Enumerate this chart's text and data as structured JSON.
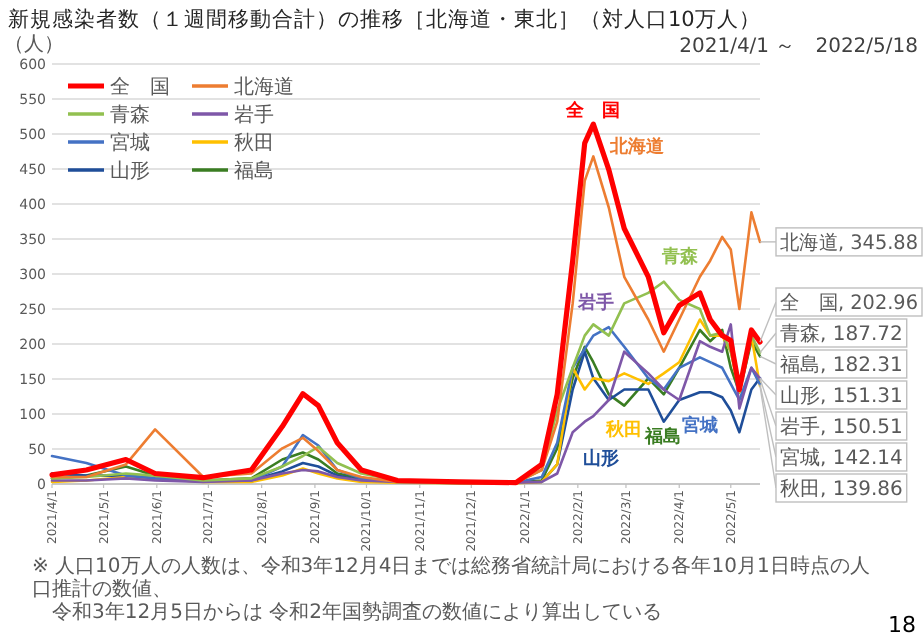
{
  "chart_data": {
    "type": "line",
    "title": "新規感染者数（１週間移動合計）の推移［北海道・東北］（対人口10万人）",
    "subtitle": "2021/4/1 ～　2022/5/18",
    "ylabel": "（人）",
    "x": [
      "2021-04-01",
      "2021-04-21",
      "2021-05-14",
      "2021-05-31",
      "2021-06-28",
      "2021-07-26",
      "2021-08-13",
      "2021-08-25",
      "2021-09-03",
      "2021-09-14",
      "2021-09-28",
      "2021-10-19",
      "2021-11-24",
      "2021-12-27",
      "2022-01-11",
      "2022-01-20",
      "2022-01-29",
      "2022-02-05",
      "2022-02-10",
      "2022-02-19",
      "2022-02-28",
      "2022-03-14",
      "2022-03-23",
      "2022-04-01",
      "2022-04-13",
      "2022-04-19",
      "2022-04-26",
      "2022-05-01",
      "2022-05-06",
      "2022-05-13",
      "2022-05-18"
    ],
    "xlim": [
      "2021-04-01",
      "2022-05-18"
    ],
    "ylim": [
      0,
      600
    ],
    "yticks": [
      0,
      50,
      100,
      150,
      200,
      250,
      300,
      350,
      400,
      450,
      500,
      550,
      600
    ],
    "xticks": [
      {
        "value": "2021-04-01",
        "label": "2021/4/1"
      },
      {
        "value": "2021-05-01",
        "label": "2021/5/1"
      },
      {
        "value": "2021-06-01",
        "label": "2021/6/1"
      },
      {
        "value": "2021-07-01",
        "label": "2021/7/1"
      },
      {
        "value": "2021-08-01",
        "label": "2021/8/1"
      },
      {
        "value": "2021-09-01",
        "label": "2021/9/1"
      },
      {
        "value": "2021-10-01",
        "label": "2021/10/1"
      },
      {
        "value": "2021-11-01",
        "label": "2021/11/1"
      },
      {
        "value": "2021-12-01",
        "label": "2021/12/1"
      },
      {
        "value": "2022-01-01",
        "label": "2022/1/1"
      },
      {
        "value": "2022-02-01",
        "label": "2022/2/1"
      },
      {
        "value": "2022-03-01",
        "label": "2022/3/1"
      },
      {
        "value": "2022-04-01",
        "label": "2022/4/1"
      },
      {
        "value": "2022-05-01",
        "label": "2022/5/1"
      }
    ],
    "grid": "y",
    "legend": "top left",
    "series": [
      {
        "name": "全　国",
        "color": "#ff0000",
        "values": [
          13,
          20,
          35,
          15,
          9,
          20,
          82,
          129,
          112,
          59,
          20,
          5,
          3,
          2,
          28,
          128,
          319,
          487,
          514,
          449,
          365,
          296,
          216,
          255,
          273,
          235,
          212,
          205,
          135,
          220,
          202.96
        ]
      },
      {
        "name": "北海道",
        "color": "#ed7d31",
        "values": [
          10,
          10,
          28,
          78,
          10,
          15,
          51,
          66,
          47,
          20,
          10,
          3,
          2,
          2,
          20,
          89,
          258,
          433,
          468,
          395,
          296,
          235,
          189,
          235,
          296,
          319,
          353,
          335,
          250,
          388,
          345.88
        ]
      },
      {
        "name": "青森",
        "color": "#92c050",
        "values": [
          8,
          10,
          15,
          12,
          5,
          8,
          25,
          40,
          53,
          30,
          15,
          5,
          3,
          2,
          20,
          105,
          166,
          212,
          228,
          212,
          258,
          273,
          289,
          263,
          250,
          212,
          216,
          189,
          135,
          212,
          187.72
        ]
      },
      {
        "name": "岩手",
        "color": "#7e57a8",
        "values": [
          5,
          5,
          8,
          5,
          3,
          5,
          15,
          20,
          18,
          10,
          5,
          3,
          2,
          2,
          3,
          15,
          74,
          89,
          97,
          120,
          189,
          158,
          135,
          120,
          204,
          196,
          189,
          228,
          108,
          166,
          150.51
        ]
      },
      {
        "name": "宮城",
        "color": "#4472c4",
        "values": [
          40,
          30,
          12,
          8,
          5,
          5,
          25,
          70,
          55,
          20,
          8,
          3,
          2,
          2,
          10,
          59,
          166,
          193,
          212,
          224,
          196,
          151,
          135,
          166,
          181,
          174,
          166,
          143,
          120,
          166,
          142.14
        ]
      },
      {
        "name": "秋田",
        "color": "#ffc000",
        "values": [
          3,
          5,
          10,
          8,
          3,
          3,
          12,
          22,
          15,
          8,
          3,
          2,
          1,
          1,
          3,
          28,
          166,
          135,
          151,
          147,
          158,
          143,
          158,
          174,
          235,
          212,
          212,
          189,
          131,
          212,
          139.86
        ]
      },
      {
        "name": "山形",
        "color": "#1f4e99",
        "values": [
          15,
          12,
          12,
          8,
          5,
          5,
          18,
          30,
          25,
          12,
          5,
          3,
          1,
          2,
          3,
          28,
          135,
          189,
          151,
          120,
          135,
          135,
          89,
          120,
          131,
          131,
          124,
          105,
          74,
          135,
          151.31
        ]
      },
      {
        "name": "福島",
        "color": "#3a7d22",
        "values": [
          8,
          12,
          25,
          12,
          5,
          8,
          35,
          45,
          35,
          15,
          8,
          3,
          2,
          2,
          5,
          51,
          151,
          196,
          174,
          128,
          112,
          151,
          128,
          166,
          220,
          204,
          220,
          166,
          131,
          204,
          182.31
        ]
      }
    ],
    "annotations": [
      {
        "text": "北海道, 345.88",
        "x": "2022-05-18",
        "y": 345.88
      },
      {
        "text": "全　国, 202.96",
        "x": "2022-05-18",
        "y": 202.96
      },
      {
        "text": "青森, 187.72",
        "x": "2022-05-18",
        "y": 187.72
      },
      {
        "text": "福島, 182.31",
        "x": "2022-05-18",
        "y": 182.31
      },
      {
        "text": "山形, 151.31",
        "x": "2022-05-18",
        "y": 151.31
      },
      {
        "text": "岩手, 150.51",
        "x": "2022-05-18",
        "y": 150.51
      },
      {
        "text": "宮城, 142.14",
        "x": "2022-05-18",
        "y": 142.14
      },
      {
        "text": "秋田, 139.86",
        "x": "2022-05-18",
        "y": 139.86
      },
      "※ 人口10万人の人数は、令和3年12月4日までは総務省統計局における各年10月1日時点の人口推計の数値、",
      "令和3年12月5日からは 令和2年国勢調査の数値により算出している",
      "18"
    ]
  }
}
